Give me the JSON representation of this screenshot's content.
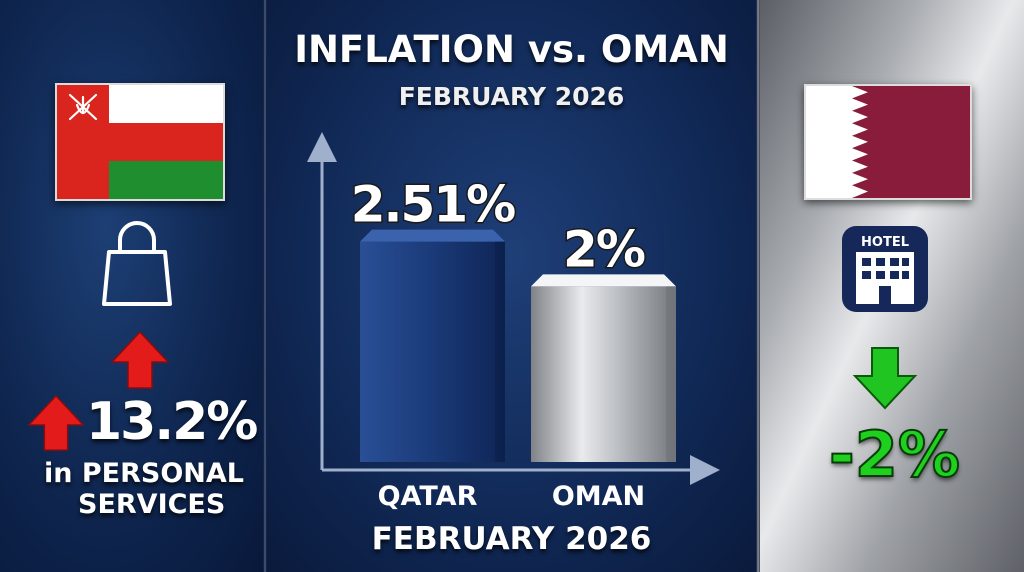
{
  "chart_data": {
    "type": "bar",
    "title": "INFLATION vs. OMAN",
    "subtitle": "FEBRUARY 2026",
    "categories": [
      "QATAR",
      "OMAN"
    ],
    "values": [
      2.51,
      2
    ],
    "value_labels": [
      "2.51%",
      "2%"
    ],
    "xlabel": "FEBRUARY 2026",
    "ylabel": "",
    "ylim": [
      0,
      3.2
    ],
    "grid": false,
    "colors": [
      "#1d3c7a",
      "#c4c7cc"
    ]
  },
  "left": {
    "flag": "Oman flag",
    "icon": "shopping-bag-icon",
    "value": "13.2%",
    "label_line1": "in PERSONAL",
    "label_line2": "SERVICES",
    "arrow_color": "#e01b1b"
  },
  "right": {
    "flag": "Qatar flag",
    "icon": "hotel-icon",
    "icon_text": "HOTEL",
    "value": "-2%",
    "arrow_color": "#1fc21f"
  }
}
